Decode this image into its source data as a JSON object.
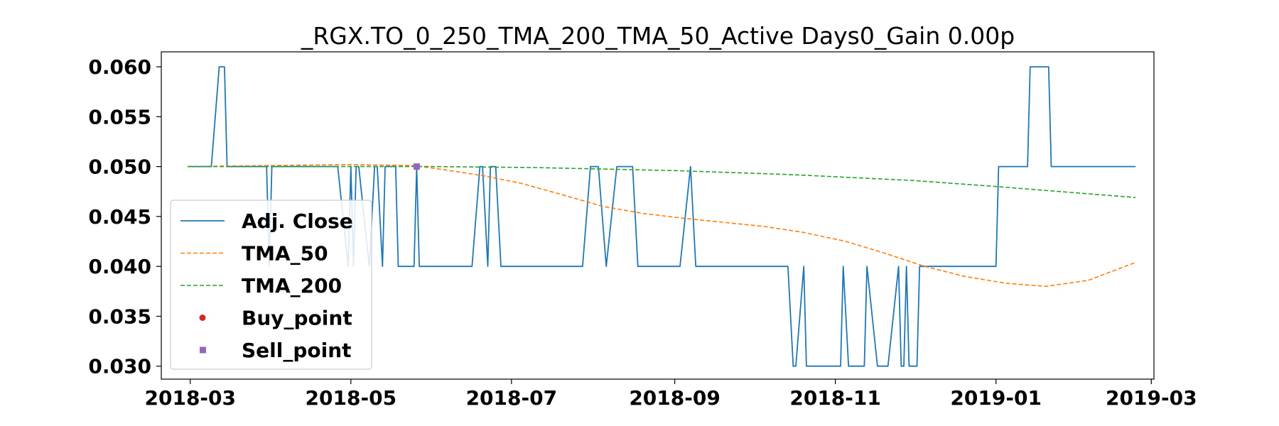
{
  "chart_data": {
    "type": "line",
    "title": "_RGX.TO_0_250_TMA_200_TMA_50_Active Days0_Gain   0.00p",
    "xlabel": "",
    "ylabel": "",
    "x_range": [
      "2018-02-18",
      "2019-03-02"
    ],
    "ylim": [
      0.0287,
      0.0615
    ],
    "x_ticks": [
      "2018-03",
      "2018-05",
      "2018-07",
      "2018-09",
      "2018-11",
      "2019-01",
      "2019-03"
    ],
    "y_ticks": [
      "0.030",
      "0.035",
      "0.040",
      "0.045",
      "0.050",
      "0.055",
      "0.060"
    ],
    "grid": false,
    "legend_position": "center-left",
    "series": [
      {
        "name": "Adj. Close",
        "color": "#1f77b4",
        "style": "solid",
        "points": [
          [
            "2018-02-28",
            0.05
          ],
          [
            "2018-03-09",
            0.05
          ],
          [
            "2018-03-12",
            0.06
          ],
          [
            "2018-03-14",
            0.06
          ],
          [
            "2018-03-15",
            0.05
          ],
          [
            "2018-03-30",
            0.05
          ],
          [
            "2018-03-31",
            0.04
          ],
          [
            "2018-04-01",
            0.05
          ],
          [
            "2018-04-26",
            0.05
          ],
          [
            "2018-04-30",
            0.04
          ],
          [
            "2018-05-01",
            0.05
          ],
          [
            "2018-05-02",
            0.04
          ],
          [
            "2018-05-03",
            0.05
          ],
          [
            "2018-05-04",
            0.05
          ],
          [
            "2018-05-08",
            0.04
          ],
          [
            "2018-05-10",
            0.05
          ],
          [
            "2018-05-11",
            0.05
          ],
          [
            "2018-05-13",
            0.04
          ],
          [
            "2018-05-14",
            0.05
          ],
          [
            "2018-05-18",
            0.05
          ],
          [
            "2018-05-19",
            0.04
          ],
          [
            "2018-05-25",
            0.04
          ],
          [
            "2018-05-26",
            0.05
          ],
          [
            "2018-05-27",
            0.04
          ],
          [
            "2018-06-16",
            0.04
          ],
          [
            "2018-06-19",
            0.05
          ],
          [
            "2018-06-20",
            0.05
          ],
          [
            "2018-06-22",
            0.04
          ],
          [
            "2018-06-23",
            0.05
          ],
          [
            "2018-06-25",
            0.05
          ],
          [
            "2018-06-27",
            0.04
          ],
          [
            "2018-07-28",
            0.04
          ],
          [
            "2018-07-31",
            0.05
          ],
          [
            "2018-08-03",
            0.05
          ],
          [
            "2018-08-06",
            0.04
          ],
          [
            "2018-08-10",
            0.05
          ],
          [
            "2018-08-16",
            0.05
          ],
          [
            "2018-08-18",
            0.04
          ],
          [
            "2018-09-03",
            0.04
          ],
          [
            "2018-09-07",
            0.05
          ],
          [
            "2018-09-09",
            0.04
          ],
          [
            "2018-10-14",
            0.04
          ],
          [
            "2018-10-16",
            0.03
          ],
          [
            "2018-10-17",
            0.03
          ],
          [
            "2018-10-20",
            0.04
          ],
          [
            "2018-10-21",
            0.03
          ],
          [
            "2018-11-03",
            0.03
          ],
          [
            "2018-11-04",
            0.04
          ],
          [
            "2018-11-06",
            0.03
          ],
          [
            "2018-11-12",
            0.03
          ],
          [
            "2018-11-13",
            0.04
          ],
          [
            "2018-11-17",
            0.03
          ],
          [
            "2018-11-21",
            0.03
          ],
          [
            "2018-11-25",
            0.04
          ],
          [
            "2018-11-26",
            0.03
          ],
          [
            "2018-11-27",
            0.03
          ],
          [
            "2018-11-28",
            0.04
          ],
          [
            "2018-11-29",
            0.03
          ],
          [
            "2018-12-02",
            0.03
          ],
          [
            "2018-12-03",
            0.04
          ],
          [
            "2019-01-01",
            0.04
          ],
          [
            "2019-01-02",
            0.05
          ],
          [
            "2019-01-13",
            0.05
          ],
          [
            "2019-01-14",
            0.06
          ],
          [
            "2019-01-21",
            0.06
          ],
          [
            "2019-01-22",
            0.05
          ],
          [
            "2019-02-23",
            0.05
          ]
        ]
      },
      {
        "name": "TMA_50",
        "color": "#ff7f0e",
        "style": "dashed",
        "points": [
          [
            "2018-02-28",
            0.05
          ],
          [
            "2018-03-31",
            0.0501
          ],
          [
            "2018-04-30",
            0.0502
          ],
          [
            "2018-05-25",
            0.0501
          ],
          [
            "2018-06-05",
            0.0497
          ],
          [
            "2018-06-20",
            0.0491
          ],
          [
            "2018-07-05",
            0.0483
          ],
          [
            "2018-07-20",
            0.0472
          ],
          [
            "2018-08-05",
            0.046
          ],
          [
            "2018-08-20",
            0.0453
          ],
          [
            "2018-09-05",
            0.0448
          ],
          [
            "2018-09-20",
            0.0444
          ],
          [
            "2018-10-05",
            0.044
          ],
          [
            "2018-10-20",
            0.0434
          ],
          [
            "2018-11-05",
            0.0425
          ],
          [
            "2018-11-20",
            0.0413
          ],
          [
            "2018-12-05",
            0.04
          ],
          [
            "2018-12-20",
            0.039
          ],
          [
            "2019-01-05",
            0.0383
          ],
          [
            "2019-01-20",
            0.038
          ],
          [
            "2019-02-05",
            0.0386
          ],
          [
            "2019-02-23",
            0.0404
          ]
        ]
      },
      {
        "name": "TMA_200",
        "color": "#2ca02c",
        "style": "dashed",
        "points": [
          [
            "2018-02-28",
            0.05
          ],
          [
            "2018-06-01",
            0.05
          ],
          [
            "2018-07-10",
            0.0499
          ],
          [
            "2018-09-01",
            0.0496
          ],
          [
            "2018-10-15",
            0.0492
          ],
          [
            "2018-12-01",
            0.0486
          ],
          [
            "2019-01-01",
            0.048
          ],
          [
            "2019-02-23",
            0.0469
          ]
        ]
      },
      {
        "name": "Buy_point",
        "color": "#d62728",
        "style": "marker-circle",
        "points": []
      },
      {
        "name": "Sell_point",
        "color": "#9467bd",
        "style": "marker-square",
        "points": [
          [
            "2018-05-26",
            0.05
          ]
        ]
      }
    ]
  }
}
